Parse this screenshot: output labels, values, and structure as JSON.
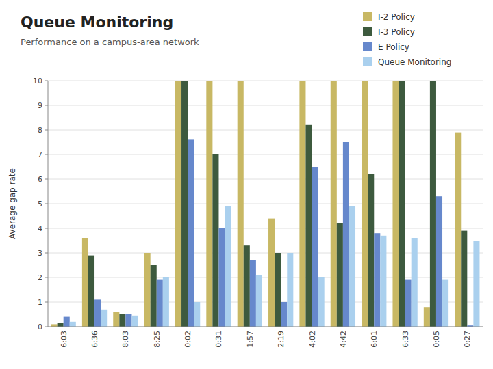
{
  "chart_data": {
    "type": "bar",
    "title": "Queue Monitoring",
    "subtitle": "Performance on a campus-area network",
    "ylabel": "Average gap rate",
    "categories": [
      "6:03",
      "6:36",
      "8:03",
      "8:25",
      "0:02",
      "0:31",
      "1:57",
      "2:19",
      "4:02",
      "4:42",
      "6:01",
      "6:33",
      "0:05",
      "0:27"
    ],
    "series": [
      {
        "name": "I-2 Policy",
        "color": "#C8B864",
        "values": [
          0.1,
          3.6,
          0.6,
          3.0,
          10.0,
          10.0,
          10.0,
          4.4,
          10.0,
          10.0,
          10.0,
          10.0,
          0.8,
          7.9
        ]
      },
      {
        "name": "I-3 Policy",
        "color": "#3D5A3E",
        "values": [
          0.15,
          2.9,
          0.5,
          2.5,
          10.0,
          7.0,
          3.3,
          3.0,
          8.2,
          4.2,
          6.2,
          10.0,
          10.0,
          3.9
        ]
      },
      {
        "name": "E Policy",
        "color": "#6688CC",
        "values": [
          0.4,
          1.1,
          0.5,
          1.9,
          7.6,
          4.0,
          2.7,
          1.0,
          6.5,
          7.5,
          3.8,
          1.9,
          5.3,
          0.05
        ]
      },
      {
        "name": "Queue Monitoring",
        "color": "#AAD0EE",
        "values": [
          0.2,
          0.7,
          0.45,
          2.0,
          1.0,
          4.9,
          2.1,
          3.0,
          2.0,
          4.9,
          3.7,
          3.6,
          1.9,
          3.5
        ]
      }
    ],
    "ylim": [
      0,
      10
    ],
    "yticks": [
      0,
      1,
      2,
      3,
      4,
      5,
      6,
      7,
      8,
      9,
      10
    ],
    "grid": true,
    "legend": "upper right"
  }
}
